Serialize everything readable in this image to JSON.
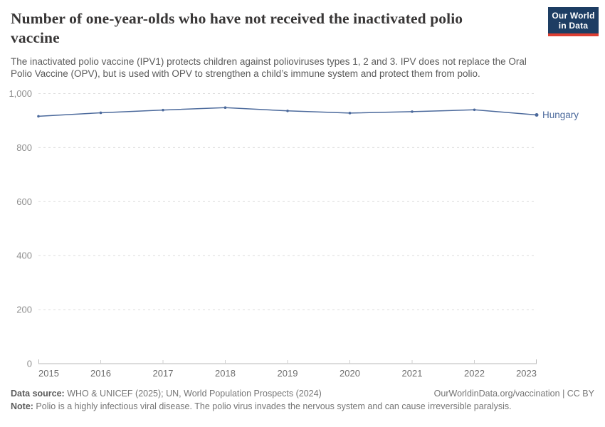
{
  "header": {
    "title_lines": [
      "Number of one-year-olds who have not received the inactivated polio",
      "vaccine"
    ],
    "subtitle_lines": [
      "The inactivated polio vaccine (IPV1) protects children against polioviruses types 1, 2 and 3. IPV does not replace the Oral",
      "Polio Vaccine (OPV), but is used with OPV to strengthen a child’s immune system and protect them from polio."
    ]
  },
  "logo": {
    "line1": "Our World",
    "line2": "in Data",
    "bg_color": "#1d3d63",
    "accent_color": "#dc3e32"
  },
  "chart_data": {
    "type": "line",
    "title": "Number of one-year-olds who have not received the inactivated polio vaccine",
    "x": [
      2015,
      2016,
      2017,
      2018,
      2019,
      2020,
      2021,
      2022,
      2023
    ],
    "xtick_labels": [
      "2015",
      "2016",
      "2017",
      "2018",
      "2019",
      "2020",
      "2021",
      "2022",
      "2023"
    ],
    "series": [
      {
        "name": "Hungary",
        "color": "#4C6A9C",
        "values": [
          916,
          929,
          939,
          948,
          936,
          928,
          933,
          940,
          921
        ]
      }
    ],
    "ylim": [
      0,
      1000
    ],
    "yticks": [
      0,
      200,
      400,
      600,
      800,
      1000
    ],
    "ytick_labels": [
      "0",
      "200",
      "400",
      "600",
      "800",
      "1,000"
    ],
    "grid": "horizontal-dashed",
    "legend": "line-end-label",
    "colors": {
      "gridline": "#dcdcdc",
      "axis": "#b9b9b9",
      "tick": "#cfcfcf",
      "y_label": "#8f8f8f",
      "x_label": "#6e6e6e"
    }
  },
  "footer": {
    "data_source_label": "Data source:",
    "data_source_text": " WHO & UNICEF (2025); UN, World Population Prospects (2024)",
    "attribution": "OurWorldinData.org/vaccination | CC BY",
    "note_label": "Note:",
    "note_text": " Polio is a highly infectious viral disease. The polio virus invades the nervous system and can cause irreversible paralysis."
  }
}
